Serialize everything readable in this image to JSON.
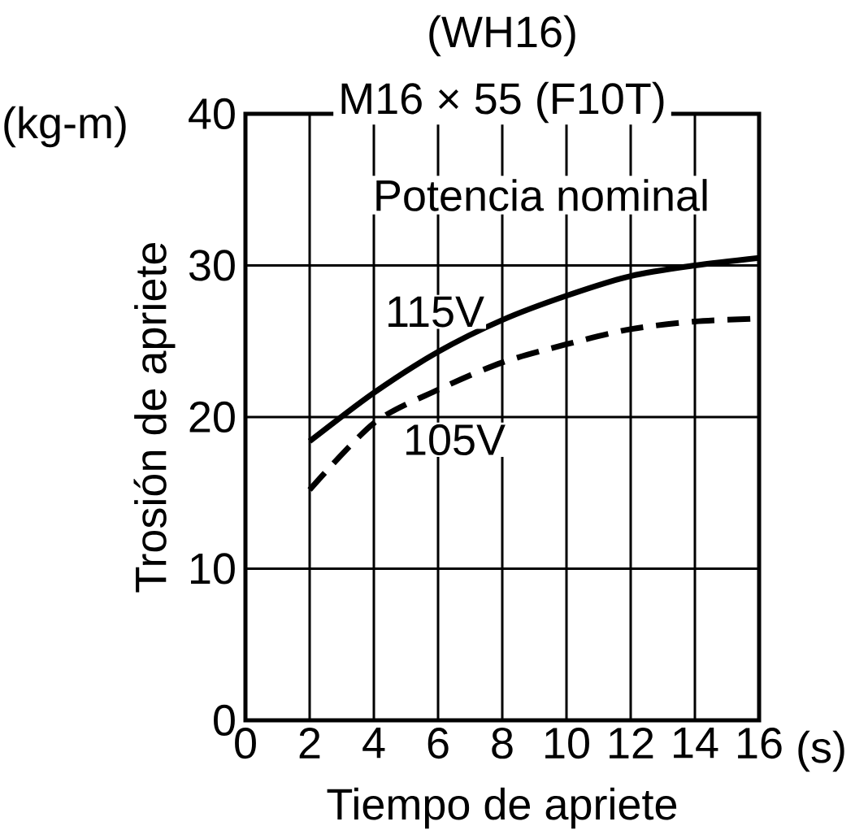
{
  "chart_data": {
    "type": "line",
    "title": "(WH16)",
    "subtitle": "M16 × 55 (F10T)",
    "xlabel": "Tiempo de apriete",
    "ylabel": "Trosión de apriete",
    "annotations": [
      "Potencia nominal",
      "(kg-m)",
      "(s)"
    ],
    "x": [
      2,
      4,
      6,
      8,
      10,
      12,
      14,
      16
    ],
    "series": [
      {
        "name": "115V",
        "color": "#000000",
        "line_style": "solid",
        "values": [
          18.4,
          21.6,
          24.3,
          26.4,
          28.0,
          29.3,
          30.0,
          30.5
        ]
      },
      {
        "name": "105V",
        "color": "#000000",
        "line_style": "dashed",
        "values": [
          15.2,
          19.6,
          21.8,
          23.6,
          24.8,
          25.8,
          26.3,
          26.5
        ]
      }
    ],
    "xlim": [
      0,
      16
    ],
    "ylim": [
      0,
      40
    ],
    "xticks": [
      0,
      2,
      4,
      6,
      8,
      10,
      12,
      14,
      16
    ],
    "yticks": [
      0,
      10,
      20,
      30,
      40
    ],
    "grid": true
  }
}
